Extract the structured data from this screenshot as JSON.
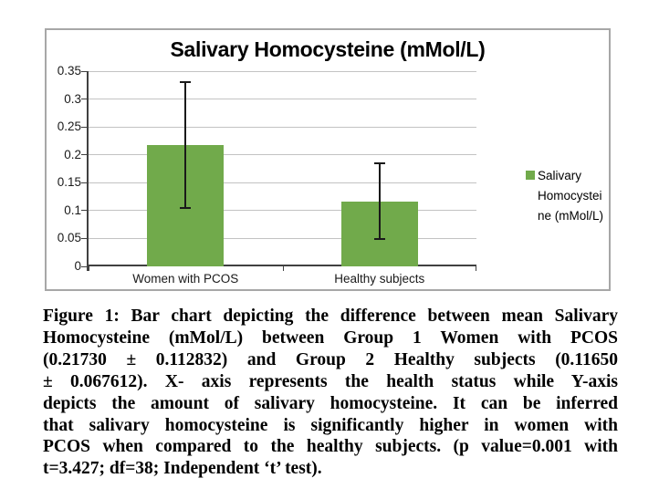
{
  "chart_data": {
    "type": "bar",
    "title": "Salivary Homocysteine (mMol/L)",
    "categories": [
      "Women with PCOS",
      "Healthy subjects"
    ],
    "series": [
      {
        "name": "Salivary Homocysteine (mMol/L)",
        "values": [
          0.2173,
          0.1165
        ],
        "errors": [
          0.112832,
          0.067612
        ]
      }
    ],
    "xlabel": "",
    "ylabel": "",
    "ylim": [
      0,
      0.35
    ],
    "ytick_labels": [
      "0",
      "0.05",
      "0.1",
      "0.15",
      "0.2",
      "0.25",
      "0.3",
      "0.35"
    ],
    "grid": true,
    "legend_position": "right",
    "colors": {
      "bar": "#71aa4b",
      "grid": "#c3c3c3",
      "axis": "#404040",
      "error_bar": "#1a1a1a",
      "chart_border": "#a7a7a7"
    }
  },
  "figure": {
    "legend_lines": [
      "Salivary",
      "Homocystei",
      "ne (mMol/L)"
    ],
    "caption_lines": [
      "Figure 1: Bar chart depicting the difference between mean Salivary",
      "Homocysteine (mMol/L) between Group 1 Women with PCOS",
      "(0.21730 ± 0.112832) and Group 2 Healthy subjects (0.11650",
      "± 0.067612). X- axis represents the health status while Y-axis",
      "depicts the amount of salivary homocysteine. It can be inferred",
      "that salivary homocysteine is significantly higher in women with",
      "PCOS when compared to the healthy subjects. (p value=0.001 with",
      "t=3.427; df=38; Independent ‘t’ test)."
    ]
  }
}
